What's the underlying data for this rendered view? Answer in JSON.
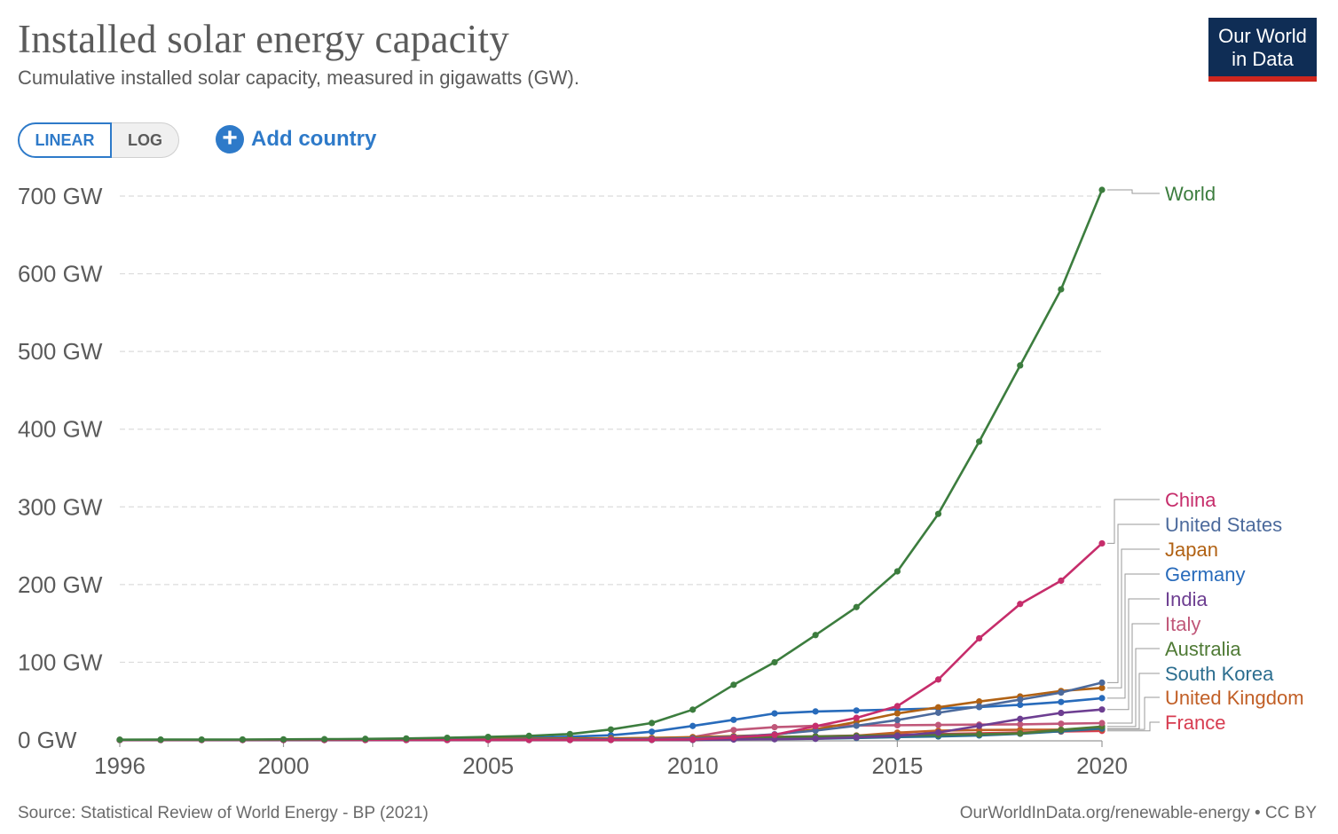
{
  "header": {
    "title": "Installed solar energy capacity",
    "subtitle": "Cumulative installed solar capacity, measured in gigawatts (GW).",
    "logo_line1": "Our World",
    "logo_line2": "in Data"
  },
  "controls": {
    "linear_label": "LINEAR",
    "log_label": "LOG",
    "add_country_label": "Add country"
  },
  "footer": {
    "source": "Source: Statistical Review of World Energy - BP (2021)",
    "license": "OurWorldInData.org/renewable-energy • CC BY"
  },
  "chart_data": {
    "type": "line",
    "title": "Installed solar energy capacity",
    "subtitle": "Cumulative installed solar capacity, measured in gigawatts (GW).",
    "ylim": [
      0,
      700
    ],
    "xlim": [
      1996,
      2020
    ],
    "y_ticks": [
      {
        "value": 0,
        "label": "0 GW"
      },
      {
        "value": 100,
        "label": "100 GW"
      },
      {
        "value": 200,
        "label": "200 GW"
      },
      {
        "value": 300,
        "label": "300 GW"
      },
      {
        "value": 400,
        "label": "400 GW"
      },
      {
        "value": 500,
        "label": "500 GW"
      },
      {
        "value": 600,
        "label": "600 GW"
      },
      {
        "value": 700,
        "label": "700 GW"
      }
    ],
    "x_ticks": [
      {
        "value": 1996,
        "label": "1996"
      },
      {
        "value": 2000,
        "label": "2000"
      },
      {
        "value": 2005,
        "label": "2005"
      },
      {
        "value": 2010,
        "label": "2010"
      },
      {
        "value": 2015,
        "label": "2015"
      },
      {
        "value": 2020,
        "label": "2020"
      }
    ],
    "grid": "horizontal dashed",
    "legend": "right (line labels)",
    "x": [
      1996,
      1997,
      1998,
      1999,
      2000,
      2001,
      2002,
      2003,
      2004,
      2005,
      2006,
      2007,
      2008,
      2009,
      2010,
      2011,
      2012,
      2013,
      2014,
      2015,
      2016,
      2017,
      2018,
      2019,
      2020
    ],
    "series": [
      {
        "name": "World",
        "color": "#3c7d3e",
        "values": [
          0.3,
          0.4,
          0.5,
          0.6,
          0.8,
          1.0,
          1.4,
          1.9,
          2.8,
          3.9,
          5.3,
          7.6,
          13.5,
          21.8,
          39.0,
          71.0,
          100.0,
          135.0,
          171.0,
          217.0,
          291.0,
          384.0,
          482.0,
          580.0,
          708.0
        ]
      },
      {
        "name": "China",
        "color": "#c62d6b",
        "values": [
          0,
          0,
          0,
          0,
          0,
          0,
          0,
          0,
          0,
          0,
          0,
          0,
          0,
          0.3,
          0.8,
          3.1,
          6.7,
          17.7,
          28.4,
          43.5,
          77.8,
          130.8,
          175.0,
          205.0,
          253.0
        ]
      },
      {
        "name": "United States",
        "color": "#4c6a9c",
        "values": [
          0.1,
          0.1,
          0.1,
          0.1,
          0.1,
          0.1,
          0.1,
          0.1,
          0.2,
          0.3,
          0.4,
          0.6,
          0.8,
          1.2,
          2.0,
          4.0,
          7.3,
          12.0,
          18.3,
          25.6,
          35.0,
          43.0,
          52.0,
          61.0,
          73.8
        ]
      },
      {
        "name": "Japan",
        "color": "#b16214",
        "values": [
          0.1,
          0.1,
          0.1,
          0.2,
          0.3,
          0.4,
          0.6,
          0.9,
          1.1,
          1.4,
          1.7,
          1.9,
          2.1,
          2.6,
          3.6,
          4.9,
          6.6,
          13.6,
          23.3,
          34.2,
          42.0,
          49.5,
          56.0,
          63.0,
          67.0
        ]
      },
      {
        "name": "Germany",
        "color": "#286bbb",
        "values": [
          0,
          0,
          0,
          0.1,
          0.1,
          0.2,
          0.3,
          0.4,
          1.1,
          2.1,
          2.9,
          4.2,
          6.1,
          10.6,
          18.0,
          25.9,
          34.1,
          36.7,
          37.9,
          39.2,
          40.7,
          42.3,
          45.2,
          48.9,
          53.8
        ]
      },
      {
        "name": "India",
        "color": "#6d3e91",
        "values": [
          0,
          0,
          0,
          0,
          0,
          0,
          0,
          0,
          0,
          0,
          0,
          0,
          0,
          0,
          0.1,
          0.6,
          1.0,
          1.6,
          3.4,
          5.4,
          9.6,
          18.2,
          27.1,
          34.8,
          39.2
        ]
      },
      {
        "name": "Italy",
        "color": "#c05779",
        "values": [
          0,
          0,
          0,
          0,
          0,
          0,
          0,
          0,
          0,
          0,
          0,
          0.1,
          0.5,
          1.2,
          3.6,
          12.8,
          16.4,
          18.2,
          18.6,
          18.9,
          19.3,
          19.7,
          20.1,
          20.9,
          21.7
        ]
      },
      {
        "name": "Australia",
        "color": "#4f7a35",
        "values": [
          0,
          0,
          0,
          0,
          0,
          0,
          0,
          0,
          0,
          0,
          0,
          0,
          0.1,
          0.2,
          1.1,
          2.4,
          3.8,
          4.6,
          5.3,
          5.9,
          6.7,
          7.4,
          8.5,
          13.0,
          17.3
        ]
      },
      {
        "name": "South Korea",
        "color": "#2c6e8f",
        "values": [
          0,
          0,
          0,
          0,
          0,
          0,
          0,
          0,
          0,
          0,
          0,
          0.1,
          0.4,
          0.5,
          0.7,
          0.8,
          1.0,
          1.5,
          2.5,
          3.6,
          4.5,
          5.8,
          7.9,
          11.2,
          14.6
        ]
      },
      {
        "name": "United Kingdom",
        "color": "#c15f26",
        "values": [
          0,
          0,
          0,
          0,
          0,
          0,
          0,
          0,
          0,
          0,
          0,
          0,
          0,
          0,
          0.1,
          1.0,
          1.8,
          2.9,
          5.5,
          9.5,
          11.9,
          12.8,
          13.1,
          13.3,
          13.6
        ]
      },
      {
        "name": "France",
        "color": "#d73c50",
        "values": [
          0,
          0,
          0,
          0,
          0,
          0,
          0,
          0,
          0,
          0,
          0,
          0,
          0.1,
          0.3,
          1.1,
          2.9,
          4.0,
          4.7,
          5.7,
          6.8,
          7.7,
          8.6,
          9.6,
          10.8,
          11.7
        ]
      }
    ]
  }
}
